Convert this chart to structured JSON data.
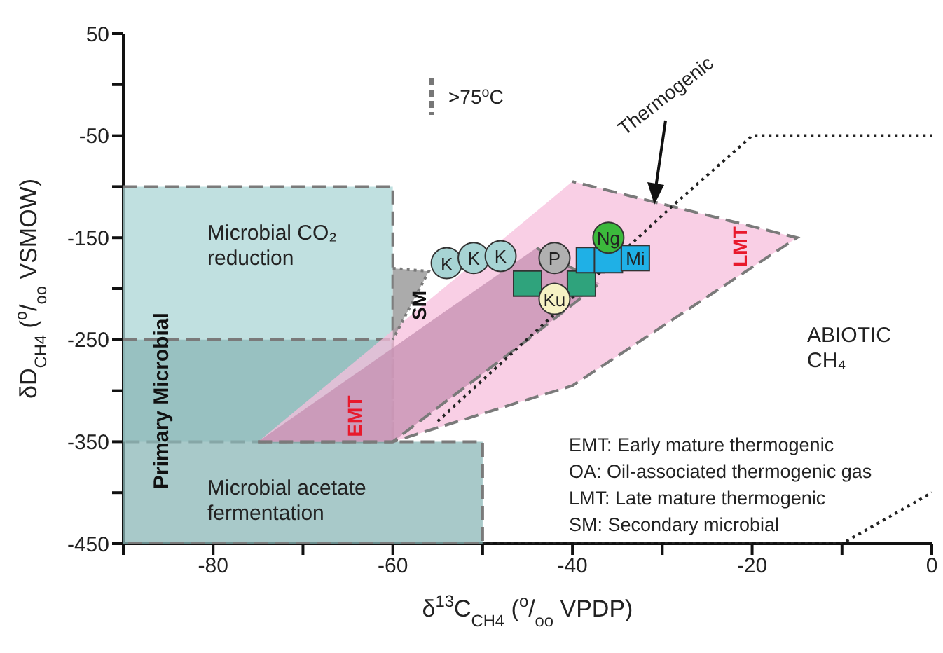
{
  "chart_data": {
    "type": "scatter",
    "xlabel": "δ$^{13}$C$_{CH4}$ ($^{o}$/$_{oo}$ VPDP)",
    "ylabel": "δD$_{CH4}$ ($^{o}$/$_{oo}$ VSMOW)",
    "xlim": [
      -90,
      0
    ],
    "xticks": [
      {
        "value": -90,
        "label": null
      },
      -80,
      {
        "value": -70,
        "label": null
      },
      -60,
      {
        "value": -50,
        "label": null
      },
      -40,
      {
        "value": -30,
        "label": null
      },
      -20,
      {
        "value": -10,
        "label": null
      },
      0
    ],
    "ylim": [
      -450,
      50
    ],
    "yticks": [
      -450,
      {
        "value": -400,
        "label": null
      },
      -350,
      {
        "value": -300,
        "label": null
      },
      -250,
      {
        "value": -200,
        "label": null
      },
      -150,
      {
        "value": -100,
        "label": null
      },
      -50,
      {
        "value": 0,
        "label": null
      },
      50
    ],
    "series": [
      {
        "type": "area",
        "color": "#abd6d6",
        "line_style": "dashed",
        "x": [
          -90,
          -60,
          -60,
          -90
        ],
        "values": [
          -100,
          -100,
          -350,
          -350
        ]
      },
      {
        "type": "area",
        "color": "#8bb7b7",
        "line_style": "dashed",
        "x": [
          -90,
          -60,
          -60,
          -50,
          -50,
          -90
        ],
        "values": [
          -250,
          -250,
          -350,
          -350,
          -450,
          -450
        ]
      },
      {
        "type": "area",
        "color": "#f7bfdc",
        "line_style": "dashed",
        "x": [
          -75,
          -60,
          -40,
          -15,
          -40
        ],
        "values": [
          -350,
          -350,
          -295,
          -150,
          -95
        ]
      },
      {
        "type": "area",
        "color": "#c48fb0",
        "line_style": "dashed",
        "x": [
          -75,
          -60,
          -45,
          -37,
          -44
        ],
        "values": [
          -350,
          -350,
          -250,
          -195,
          -160
        ]
      },
      {
        "type": "area",
        "color": "#8f8f8f",
        "line_style": "dotted",
        "x": [
          -60,
          -56,
          -60
        ],
        "values": [
          -180,
          -183,
          -250
        ]
      },
      {
        "type": "line",
        "color": "#222222",
        "line_style": "dotted",
        "x": [
          -55,
          -29,
          -20,
          0
        ],
        "values": [
          -330,
          -120,
          -50,
          -50
        ]
      },
      {
        "type": "line",
        "color": "#222222",
        "line_style": "dotted",
        "x": [
          -50,
          -10,
          0
        ],
        "values": [
          -450,
          -450,
          -400
        ]
      },
      {
        "name": "K",
        "marker": "circle",
        "color": "#a7d4d4",
        "x": [
          -54,
          -51,
          -48
        ],
        "values": [
          -175,
          -170,
          -168
        ]
      },
      {
        "marker": "square",
        "color": "#2fa37c",
        "x": [
          -45,
          -39
        ],
        "values": [
          -195,
          -195
        ]
      },
      {
        "name": "Ku",
        "marker": "circle",
        "color": "#f6f2c4",
        "x": [
          -42
        ],
        "values": [
          -210
        ]
      },
      {
        "name": "P",
        "marker": "circle",
        "color": "#b0b0b0",
        "x": [
          -42
        ],
        "values": [
          -170
        ]
      },
      {
        "marker": "square",
        "color": "#1fb0e6",
        "x": [
          -38,
          -36
        ],
        "values": [
          -172,
          -172
        ]
      },
      {
        "name": "Mi",
        "marker": "square",
        "color": "#1fb0e6",
        "x": [
          -33
        ],
        "values": [
          -170
        ]
      },
      {
        "name": "Ng",
        "marker": "circle",
        "color": "#3cb83c",
        "x": [
          -36
        ],
        "values": [
          -150
        ]
      }
    ],
    "annotations": [
      "Microbial CO₂\nreduction",
      "Primary Microbial",
      "Microbial acetate\nfermentation",
      "SM",
      "EMT",
      "LMT",
      "ABIOTIC\nCH₄",
      ">75$^{o}$C",
      "Thermogenic",
      "EMT: Early mature thermogenic",
      "OA: Oil-associated thermogenic gas",
      "LMT: Late mature thermogenic",
      "SM: Secondary microbial"
    ]
  }
}
